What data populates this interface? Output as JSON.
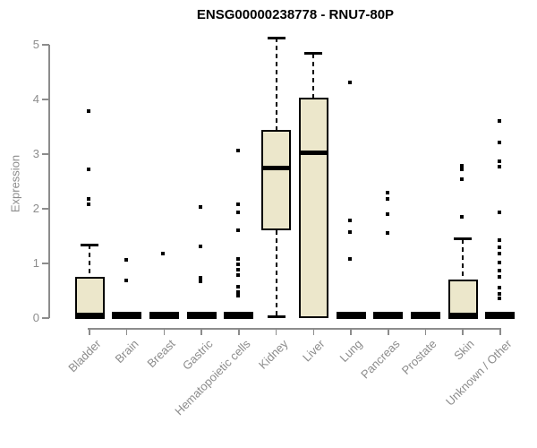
{
  "chart_data": {
    "type": "boxplot",
    "title": "ENSG00000238778 - RNU7-80P",
    "xlabel": "",
    "ylabel": "Expression",
    "ylim": [
      0,
      5
    ],
    "yticks": [
      0,
      1,
      2,
      3,
      4,
      5
    ],
    "grid": "off",
    "legend": "none",
    "categories": [
      "Bladder",
      "Brain",
      "Breast",
      "Gastric",
      "Hematopoietic cells",
      "Kidney",
      "Liver",
      "Lung",
      "Pancreas",
      "Prostate",
      "Skin",
      "Unknown / Other"
    ],
    "series": [
      {
        "category": "Bladder",
        "whisker_low": 0,
        "q1": 0,
        "median": 0,
        "q3": 0.75,
        "whisker_high": 1.34,
        "outliers": [
          3.78,
          2.72,
          2.18,
          2.08
        ]
      },
      {
        "category": "Brain",
        "whisker_low": 0,
        "q1": 0,
        "median": 0,
        "q3": 0,
        "whisker_high": 0,
        "outliers": [
          1.07,
          0.69
        ]
      },
      {
        "category": "Breast",
        "whisker_low": 0,
        "q1": 0,
        "median": 0,
        "q3": 0,
        "whisker_high": 0,
        "outliers": [
          1.18
        ]
      },
      {
        "category": "Gastric",
        "whisker_low": 0,
        "q1": 0,
        "median": 0,
        "q3": 0,
        "whisker_high": 0,
        "outliers": [
          2.03,
          1.31,
          0.73,
          0.68
        ]
      },
      {
        "category": "Hematopoietic cells",
        "whisker_low": 0,
        "q1": 0,
        "median": 0,
        "q3": 0,
        "whisker_high": 0,
        "outliers": [
          3.06,
          2.08,
          1.93,
          1.6,
          1.09,
          0.98,
          0.88,
          0.79,
          0.57,
          0.48,
          0.41
        ]
      },
      {
        "category": "Kidney",
        "whisker_low": 0.02,
        "q1": 1.61,
        "median": 2.74,
        "q3": 3.44,
        "whisker_high": 5.13,
        "outliers": []
      },
      {
        "category": "Liver",
        "whisker_low": 0,
        "q1": 0,
        "median": 3.02,
        "q3": 4.04,
        "whisker_high": 4.84,
        "outliers": []
      },
      {
        "category": "Lung",
        "whisker_low": 0,
        "q1": 0,
        "median": 0,
        "q3": 0,
        "whisker_high": 0,
        "outliers": [
          4.31,
          1.78,
          1.57,
          1.08
        ]
      },
      {
        "category": "Pancreas",
        "whisker_low": 0,
        "q1": 0,
        "median": 0,
        "q3": 0,
        "whisker_high": 0,
        "outliers": [
          2.3,
          2.18,
          1.9,
          1.56
        ]
      },
      {
        "category": "Prostate",
        "whisker_low": 0,
        "q1": 0,
        "median": 0,
        "q3": 0,
        "whisker_high": 0,
        "outliers": []
      },
      {
        "category": "Skin",
        "whisker_low": 0,
        "q1": 0,
        "median": 0,
        "q3": 0.71,
        "whisker_high": 1.45,
        "outliers": [
          2.78,
          2.72,
          2.54,
          1.86
        ]
      },
      {
        "category": "Unknown / Other",
        "whisker_low": 0,
        "q1": 0,
        "median": 0,
        "q3": 0,
        "whisker_high": 0,
        "outliers": [
          3.61,
          3.21,
          2.87,
          2.77,
          1.93,
          1.43,
          1.3,
          1.18,
          1.02,
          0.87,
          0.75,
          0.55,
          0.45,
          0.36
        ]
      }
    ],
    "colors": {
      "box_fill": "#ece7cb",
      "box_border": "#000000",
      "median": "#000000",
      "outlier": "#000000",
      "axis": "#8c8c8c",
      "title": "#000000"
    }
  }
}
